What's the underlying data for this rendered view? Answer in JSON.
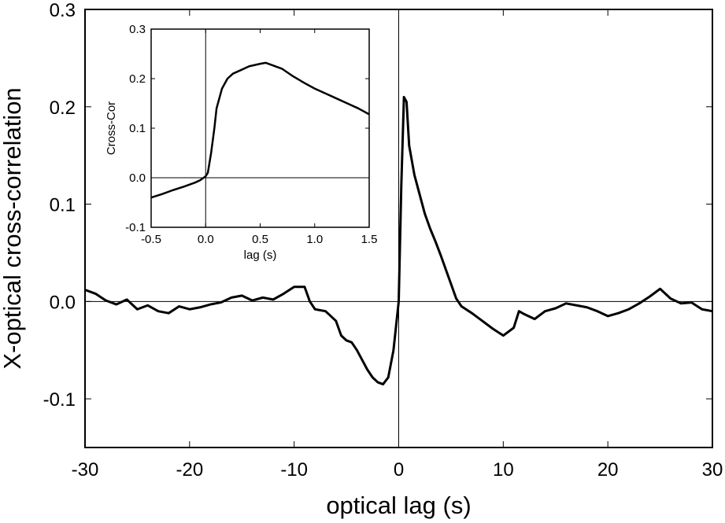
{
  "chart_data": [
    {
      "type": "line",
      "role": "main",
      "xlabel": "optical lag (s)",
      "ylabel": "X-optical cross-correlation",
      "xlim": [
        -30,
        30
      ],
      "ylim": [
        -0.15,
        0.3
      ],
      "xticks": [
        -30,
        -20,
        -10,
        0,
        10,
        20,
        30
      ],
      "xtick_labels": [
        "-30",
        "-20",
        "-10",
        "0",
        "10",
        "20",
        "30"
      ],
      "yticks": [
        -0.1,
        0.0,
        0.1,
        0.2,
        0.3
      ],
      "ytick_labels": [
        "-0.1",
        "0.0",
        "0.1",
        "0.2",
        "0.3"
      ],
      "reference_lines": {
        "x": 0,
        "y": 0
      },
      "grid": false,
      "series": [
        {
          "x": [
            -30,
            -29,
            -28,
            -27,
            -26,
            -25,
            -24,
            -23,
            -22,
            -21,
            -20,
            -19,
            -18,
            -17,
            -16,
            -15,
            -14,
            -13,
            -12,
            -11,
            -10,
            -9,
            -8.5,
            -8,
            -7,
            -6,
            -5.5,
            -5,
            -4.5,
            -4,
            -3.5,
            -3,
            -2.5,
            -2,
            -1.5,
            -1,
            -0.5,
            0,
            0.25,
            0.5,
            0.75,
            1,
            1.5,
            2,
            2.5,
            3,
            3.5,
            4,
            4.5,
            5,
            5.5,
            6,
            7,
            8,
            9,
            10,
            11,
            11.5,
            12,
            13,
            14,
            15,
            16,
            17,
            18,
            19,
            20,
            21,
            22,
            23,
            24,
            25,
            26,
            27,
            28,
            29,
            30
          ],
          "y": [
            0.012,
            0.008,
            0.001,
            -0.003,
            0.002,
            -0.008,
            -0.004,
            -0.01,
            -0.012,
            -0.005,
            -0.008,
            -0.006,
            -0.003,
            -0.001,
            0.004,
            0.006,
            0.001,
            0.004,
            0.002,
            0.008,
            0.015,
            0.015,
            0.0,
            -0.008,
            -0.01,
            -0.02,
            -0.035,
            -0.04,
            -0.042,
            -0.05,
            -0.06,
            -0.07,
            -0.078,
            -0.083,
            -0.085,
            -0.078,
            -0.05,
            0.0,
            0.12,
            0.21,
            0.205,
            0.16,
            0.13,
            0.11,
            0.09,
            0.075,
            0.062,
            0.048,
            0.033,
            0.018,
            0.003,
            -0.005,
            -0.012,
            -0.02,
            -0.028,
            -0.035,
            -0.027,
            -0.01,
            -0.013,
            -0.018,
            -0.01,
            -0.007,
            -0.002,
            -0.004,
            -0.006,
            -0.01,
            -0.015,
            -0.012,
            -0.008,
            -0.002,
            0.005,
            0.013,
            0.003,
            -0.002,
            -0.001,
            -0.008,
            -0.01
          ]
        }
      ]
    },
    {
      "type": "line",
      "role": "inset",
      "xlabel": "lag (s)",
      "ylabel": "Cross-Cor",
      "xlim": [
        -0.5,
        1.5
      ],
      "ylim": [
        -0.1,
        0.3
      ],
      "xticks": [
        -0.5,
        0.0,
        0.5,
        1.0,
        1.5
      ],
      "xtick_labels": [
        "-0.5",
        "0.0",
        "0.5",
        "1.0",
        "1.5"
      ],
      "yticks": [
        -0.1,
        0.0,
        0.1,
        0.2,
        0.3
      ],
      "ytick_labels": [
        "-0.1",
        "0.0",
        "0.1",
        "0.2",
        "0.3"
      ],
      "reference_lines": {
        "x": 0,
        "y": 0
      },
      "grid": false,
      "series": [
        {
          "x": [
            -0.5,
            -0.4,
            -0.3,
            -0.2,
            -0.1,
            -0.05,
            0.0,
            0.02,
            0.05,
            0.08,
            0.1,
            0.15,
            0.2,
            0.25,
            0.3,
            0.4,
            0.5,
            0.55,
            0.6,
            0.7,
            0.8,
            0.9,
            1.0,
            1.1,
            1.2,
            1.3,
            1.4,
            1.5
          ],
          "y": [
            -0.04,
            -0.033,
            -0.025,
            -0.018,
            -0.01,
            -0.005,
            0.003,
            0.01,
            0.05,
            0.1,
            0.14,
            0.18,
            0.2,
            0.21,
            0.215,
            0.225,
            0.23,
            0.232,
            0.228,
            0.22,
            0.205,
            0.192,
            0.18,
            0.17,
            0.16,
            0.15,
            0.14,
            0.128
          ]
        }
      ]
    }
  ]
}
